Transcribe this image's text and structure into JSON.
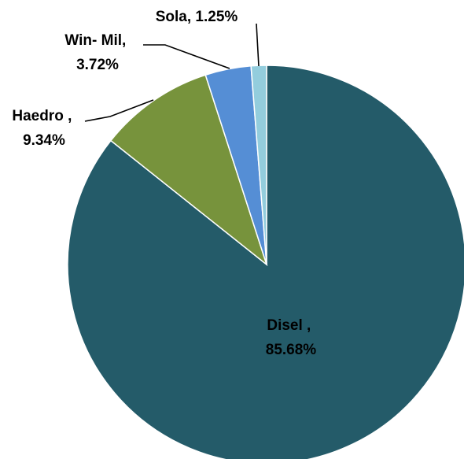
{
  "chart_data": {
    "type": "pie",
    "title": "",
    "legend": "none",
    "slices": [
      {
        "name": "Disel",
        "value": 85.68,
        "label_name": "Disel ,",
        "label_value": "85.68%",
        "color": "#245B69"
      },
      {
        "name": "Haedro",
        "value": 9.34,
        "label_name": "Haedro ,",
        "label_value": "9.34%",
        "color": "#77933C"
      },
      {
        "name": "Win- Mil",
        "value": 3.72,
        "label_name": "Win- Mil,",
        "label_value": "3.72%",
        "color": "#558ED5"
      },
      {
        "name": "Sola",
        "value": 1.25,
        "label_name": "Sola, 1.25%",
        "label_value": "",
        "color": "#93CDDD"
      }
    ]
  }
}
